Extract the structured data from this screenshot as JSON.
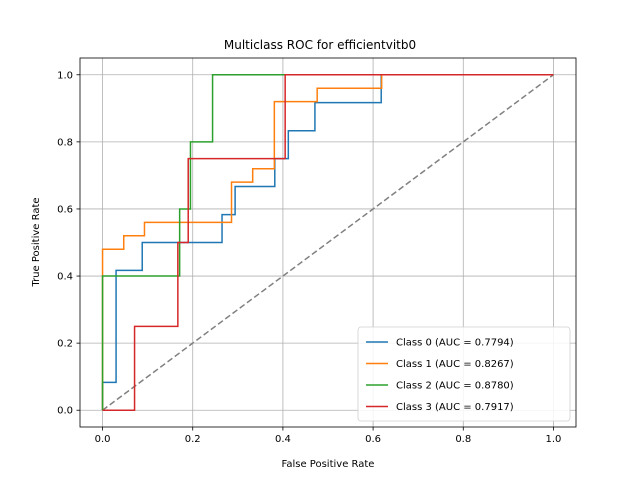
{
  "chart_data": {
    "type": "line",
    "title": "Multiclass ROC for efficientvitb0",
    "xlabel": "False Positive Rate",
    "ylabel": "True Positive Rate",
    "xlim": [
      -0.05,
      1.05
    ],
    "ylim": [
      -0.05,
      1.05
    ],
    "xticks": [
      "0.0",
      "0.2",
      "0.4",
      "0.6",
      "0.8",
      "1.0"
    ],
    "yticks": [
      "0.0",
      "0.2",
      "0.4",
      "0.6",
      "0.8",
      "1.0"
    ],
    "grid": true,
    "legend_position": "bottom-right",
    "step": true,
    "series": [
      {
        "name": "Class 0 (AUC = 0.7794)",
        "color": "#1f77b4",
        "x": [
          0.0,
          0.0,
          0.03,
          0.03,
          0.088,
          0.088,
          0.265,
          0.265,
          0.294,
          0.294,
          0.382,
          0.382,
          0.412,
          0.412,
          0.471,
          0.471,
          0.618,
          0.618,
          1.0
        ],
        "y": [
          0.0,
          0.083,
          0.083,
          0.417,
          0.417,
          0.5,
          0.5,
          0.583,
          0.583,
          0.667,
          0.667,
          0.75,
          0.75,
          0.833,
          0.833,
          0.917,
          0.917,
          1.0,
          1.0
        ]
      },
      {
        "name": "Class 1 (AUC = 0.8267)",
        "color": "#ff7f0e",
        "x": [
          0.0,
          0.0,
          0.047,
          0.047,
          0.093,
          0.093,
          0.286,
          0.286,
          0.333,
          0.333,
          0.381,
          0.381,
          0.476,
          0.476,
          0.619,
          0.619,
          1.0
        ],
        "y": [
          0.0,
          0.48,
          0.48,
          0.52,
          0.52,
          0.56,
          0.56,
          0.68,
          0.68,
          0.72,
          0.72,
          0.92,
          0.92,
          0.96,
          0.96,
          1.0,
          1.0
        ]
      },
      {
        "name": "Class 2 (AUC = 0.8780)",
        "color": "#2ca02c",
        "x": [
          0.0,
          0.0,
          0.171,
          0.171,
          0.195,
          0.195,
          0.244,
          0.244,
          1.0
        ],
        "y": [
          0.0,
          0.4,
          0.4,
          0.6,
          0.6,
          0.8,
          0.8,
          1.0,
          1.0
        ]
      },
      {
        "name": "Class 3 (AUC = 0.7917)",
        "color": "#d62728",
        "x": [
          0.0,
          0.071,
          0.071,
          0.167,
          0.167,
          0.19,
          0.19,
          0.405,
          0.405,
          1.0
        ],
        "y": [
          0.0,
          0.0,
          0.25,
          0.25,
          0.5,
          0.5,
          0.75,
          0.75,
          1.0,
          1.0
        ]
      }
    ],
    "reference_line": {
      "x": [
        0,
        1
      ],
      "y": [
        0,
        1
      ],
      "color": "#808080",
      "dash": true
    }
  }
}
